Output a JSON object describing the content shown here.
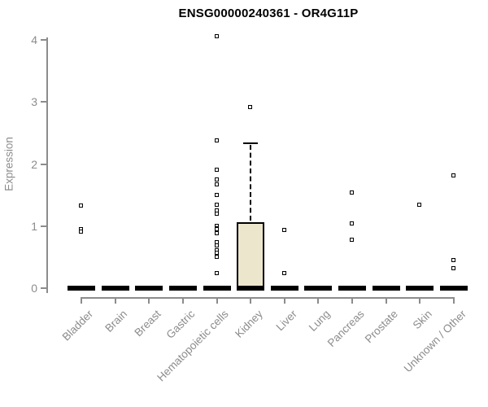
{
  "title": "ENSG00000240361 - OR4G11P",
  "chart_data": {
    "type": "boxplot",
    "title": "ENSG00000240361 - OR4G11P",
    "xlabel": "",
    "ylabel": "Expression",
    "ylim": [
      0,
      4
    ],
    "yticks": [
      "0",
      "1",
      "2",
      "3",
      "4"
    ],
    "grid": false,
    "legend": "none",
    "categories": [
      "Bladder",
      "Brain",
      "Breast",
      "Gastric",
      "Hematopoietic cells",
      "Kidney",
      "Liver",
      "Lung",
      "Pancreas",
      "Prostate",
      "Skin",
      "Unknown / Other"
    ],
    "boxes": [
      {
        "category": "Bladder",
        "median": 0,
        "q1": 0,
        "q3": 0,
        "whisker_low": 0,
        "whisker_high": 0,
        "outliers": [
          1.32,
          0.94,
          0.9
        ]
      },
      {
        "category": "Brain",
        "median": 0,
        "q1": 0,
        "q3": 0,
        "whisker_low": 0,
        "whisker_high": 0,
        "outliers": []
      },
      {
        "category": "Breast",
        "median": 0,
        "q1": 0,
        "q3": 0,
        "whisker_low": 0,
        "whisker_high": 0,
        "outliers": []
      },
      {
        "category": "Gastric",
        "median": 0,
        "q1": 0,
        "q3": 0,
        "whisker_low": 0,
        "whisker_high": 0,
        "outliers": []
      },
      {
        "category": "Hematopoietic cells",
        "median": 0,
        "q1": 0,
        "q3": 0,
        "whisker_low": 0,
        "whisker_high": 0,
        "outliers": [
          4.05,
          2.38,
          1.9,
          1.74,
          1.66,
          1.49,
          1.34,
          1.25,
          1.2,
          1.0,
          0.96,
          0.94,
          0.88,
          0.73,
          0.68,
          0.6,
          0.56,
          0.5,
          0.23
        ]
      },
      {
        "category": "Kidney",
        "median": 0,
        "q1": 0,
        "q3": 1.06,
        "whisker_low": 0,
        "whisker_high": 2.33,
        "outliers": [
          2.91
        ]
      },
      {
        "category": "Liver",
        "median": 0,
        "q1": 0,
        "q3": 0,
        "whisker_low": 0,
        "whisker_high": 0,
        "outliers": [
          0.93,
          0.23
        ]
      },
      {
        "category": "Lung",
        "median": 0,
        "q1": 0,
        "q3": 0,
        "whisker_low": 0,
        "whisker_high": 0,
        "outliers": []
      },
      {
        "category": "Pancreas",
        "median": 0,
        "q1": 0,
        "q3": 0,
        "whisker_low": 0,
        "whisker_high": 0,
        "outliers": [
          1.54,
          1.04,
          0.77
        ]
      },
      {
        "category": "Prostate",
        "median": 0,
        "q1": 0,
        "q3": 0,
        "whisker_low": 0,
        "whisker_high": 0,
        "outliers": []
      },
      {
        "category": "Skin",
        "median": 0,
        "q1": 0,
        "q3": 0,
        "whisker_low": 0,
        "whisker_high": 0,
        "outliers": [
          1.34
        ]
      },
      {
        "category": "Unknown / Other",
        "median": 0,
        "q1": 0,
        "q3": 0,
        "whisker_low": 0,
        "whisker_high": 0,
        "outliers": [
          1.81,
          0.44,
          0.31
        ]
      }
    ],
    "colors": {
      "box_fill": "#ece6cd",
      "box_border": "#000000",
      "median": "#000000",
      "outlier": "#000000",
      "axis": "#8c8c8c",
      "tick_label": "#8c8c8c",
      "title": "#000000",
      "background": "#ffffff"
    }
  }
}
